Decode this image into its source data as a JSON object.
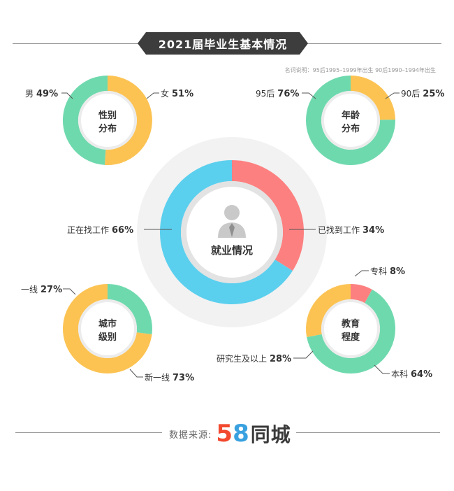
{
  "header": {
    "title": "2021届毕业生基本情况",
    "note": "名词说明：95后1995–1999年出生  90后1990–1994年出生"
  },
  "colors": {
    "green": "#6fd9ae",
    "yellow": "#fcc353",
    "red": "#fd8080",
    "blue": "#5bcfee",
    "halo": "#f2f2f2",
    "dark": "#3d3d3d"
  },
  "chart_data": [
    {
      "type": "pie",
      "title": "性别分布",
      "slices": [
        {
          "label": "男",
          "value": 49,
          "pct_text": "49%"
        },
        {
          "label": "女",
          "value": 51,
          "pct_text": "51%"
        }
      ]
    },
    {
      "type": "pie",
      "title": "年龄分布",
      "slices": [
        {
          "label": "95后",
          "value": 76,
          "pct_text": "76%"
        },
        {
          "label": "90后",
          "value": 25,
          "pct_text": "25%"
        }
      ]
    },
    {
      "type": "pie",
      "title": "就业情况",
      "slices": [
        {
          "label": "正在找工作",
          "value": 66,
          "pct_text": "66%"
        },
        {
          "label": "已找到工作",
          "value": 34,
          "pct_text": "34%"
        }
      ]
    },
    {
      "type": "pie",
      "title": "城市级别",
      "slices": [
        {
          "label": "一线",
          "value": 27,
          "pct_text": "27%"
        },
        {
          "label": "新一线",
          "value": 73,
          "pct_text": "73%"
        }
      ]
    },
    {
      "type": "pie",
      "title": "教育程度",
      "slices": [
        {
          "label": "专科",
          "value": 8,
          "pct_text": "8%"
        },
        {
          "label": "研究生及以上",
          "value": 28,
          "pct_text": "28%"
        },
        {
          "label": "本科",
          "value": 64,
          "pct_text": "64%"
        }
      ]
    }
  ],
  "footer": {
    "source_label": "数据来源:",
    "logo_digit_5": "5",
    "logo_digit_8": "8",
    "logo_text": "同城"
  }
}
